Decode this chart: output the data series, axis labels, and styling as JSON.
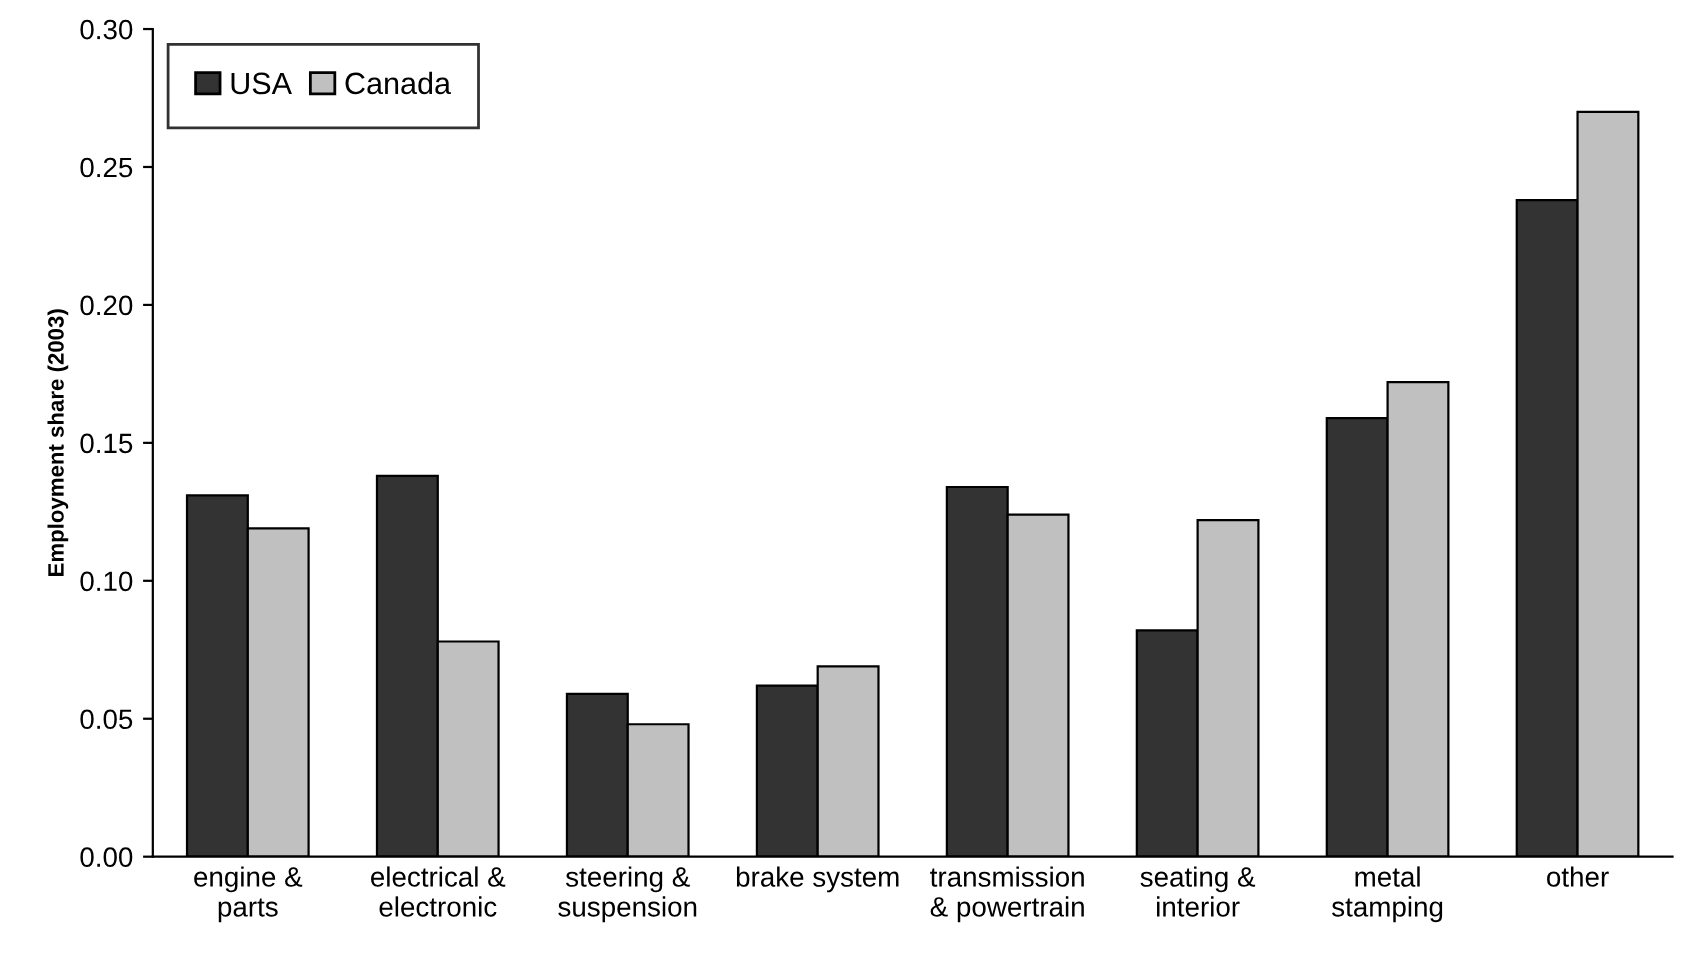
{
  "chart_data": {
    "type": "bar",
    "ylabel": "Employment share (2003)",
    "categories": [
      "engine &\nparts",
      "electrical &\nelectronic",
      "steering &\nsuspension",
      "brake system",
      "transmission\n& powertrain",
      "seating &\ninterior",
      "metal\nstamping",
      "other"
    ],
    "series": [
      {
        "name": "USA",
        "color": "#333333",
        "values": [
          0.131,
          0.138,
          0.059,
          0.062,
          0.134,
          0.082,
          0.159,
          0.238
        ]
      },
      {
        "name": "Canada",
        "color": "#c0c0c0",
        "values": [
          0.119,
          0.078,
          0.048,
          0.069,
          0.124,
          0.122,
          0.172,
          0.27
        ]
      }
    ],
    "ylim": [
      0,
      0.3
    ],
    "yticks": [
      {
        "value": 0,
        "label": "0.00"
      },
      {
        "value": 0.05,
        "label": "0.05"
      },
      {
        "value": 0.1,
        "label": "0.10"
      },
      {
        "value": 0.15,
        "label": "0.15"
      },
      {
        "value": 0.2,
        "label": "0.20"
      },
      {
        "value": 0.25,
        "label": "0.25"
      },
      {
        "value": 0.3,
        "label": "0.30"
      }
    ],
    "grid": false,
    "legend": "top left"
  }
}
